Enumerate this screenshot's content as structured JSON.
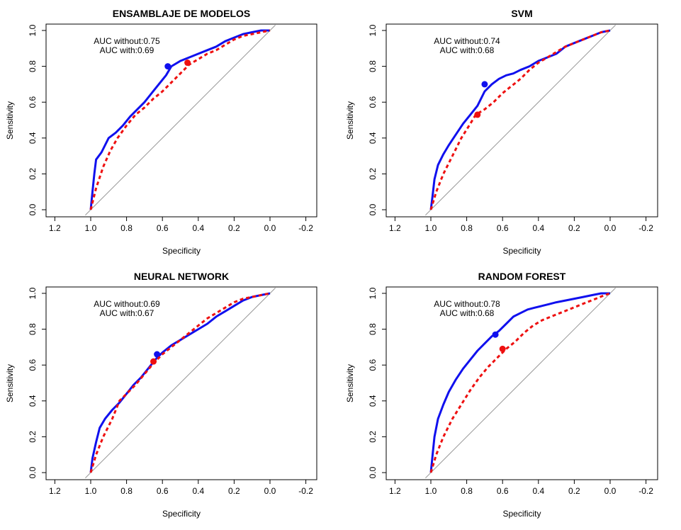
{
  "colors": {
    "without": "#1010ee",
    "with": "#ee1010",
    "diagonal": "#999999",
    "axis": "#000000"
  },
  "chart_data": [
    {
      "type": "line",
      "title": "ENSAMBLAJE DE MODELOS",
      "xlabel": "Specificity",
      "ylabel": "Sensitivity",
      "xlim": [
        1.25,
        -0.25
      ],
      "ylim": [
        0,
        1
      ],
      "xticks": [
        "1.2",
        "1.0",
        "0.8",
        "0.6",
        "0.4",
        "0.2",
        "0.0",
        "-0.2"
      ],
      "yticks": [
        "0.0",
        "0.2",
        "0.4",
        "0.6",
        "0.8",
        "1.0"
      ],
      "auc_without": "AUC without:0.75",
      "auc_with": "AUC with:0.69",
      "series": [
        {
          "id": "without",
          "style": "solid",
          "x": [
            1.0,
            0.99,
            0.98,
            0.97,
            0.94,
            0.9,
            0.86,
            0.82,
            0.78,
            0.74,
            0.7,
            0.66,
            0.62,
            0.58,
            0.55,
            0.5,
            0.45,
            0.4,
            0.35,
            0.3,
            0.25,
            0.2,
            0.15,
            0.1,
            0.05,
            0.0
          ],
          "y": [
            0.0,
            0.1,
            0.2,
            0.28,
            0.32,
            0.4,
            0.43,
            0.47,
            0.52,
            0.56,
            0.6,
            0.65,
            0.7,
            0.75,
            0.8,
            0.83,
            0.85,
            0.87,
            0.89,
            0.91,
            0.94,
            0.96,
            0.98,
            0.99,
            1.0,
            1.0
          ],
          "marker": [
            0.57,
            0.8
          ]
        },
        {
          "id": "with",
          "style": "dashed",
          "x": [
            1.0,
            0.97,
            0.93,
            0.89,
            0.85,
            0.8,
            0.75,
            0.7,
            0.65,
            0.6,
            0.55,
            0.5,
            0.45,
            0.4,
            0.35,
            0.3,
            0.25,
            0.2,
            0.15,
            0.1,
            0.05,
            0.0
          ],
          "y": [
            0.0,
            0.12,
            0.24,
            0.33,
            0.4,
            0.47,
            0.53,
            0.57,
            0.62,
            0.66,
            0.71,
            0.76,
            0.81,
            0.84,
            0.87,
            0.89,
            0.92,
            0.95,
            0.97,
            0.98,
            0.99,
            1.0
          ],
          "marker": [
            0.46,
            0.82
          ]
        }
      ]
    },
    {
      "type": "line",
      "title": "SVM",
      "xlabel": "Specificity",
      "ylabel": "Sensitivity",
      "xlim": [
        1.25,
        -0.25
      ],
      "ylim": [
        0,
        1
      ],
      "xticks": [
        "1.2",
        "1.0",
        "0.8",
        "0.6",
        "0.4",
        "0.2",
        "0.0",
        "-0.2"
      ],
      "yticks": [
        "0.0",
        "0.2",
        "0.4",
        "0.6",
        "0.8",
        "1.0"
      ],
      "auc_without": "AUC without:0.74",
      "auc_with": "AUC with:0.68",
      "series": [
        {
          "id": "without",
          "style": "solid",
          "x": [
            1.0,
            0.99,
            0.98,
            0.96,
            0.93,
            0.9,
            0.86,
            0.82,
            0.78,
            0.74,
            0.7,
            0.66,
            0.62,
            0.58,
            0.54,
            0.5,
            0.45,
            0.4,
            0.35,
            0.3,
            0.25,
            0.2,
            0.15,
            0.1,
            0.05,
            0.0
          ],
          "y": [
            0.0,
            0.08,
            0.17,
            0.25,
            0.31,
            0.36,
            0.42,
            0.48,
            0.53,
            0.58,
            0.66,
            0.7,
            0.73,
            0.75,
            0.76,
            0.78,
            0.8,
            0.83,
            0.85,
            0.87,
            0.91,
            0.93,
            0.95,
            0.97,
            0.99,
            1.0
          ],
          "marker": [
            0.7,
            0.7
          ]
        },
        {
          "id": "with",
          "style": "dashed",
          "x": [
            1.0,
            0.97,
            0.93,
            0.88,
            0.83,
            0.78,
            0.75,
            0.7,
            0.65,
            0.6,
            0.55,
            0.5,
            0.45,
            0.4,
            0.35,
            0.3,
            0.25,
            0.2,
            0.15,
            0.1,
            0.05,
            0.0
          ],
          "y": [
            0.0,
            0.1,
            0.2,
            0.3,
            0.4,
            0.48,
            0.53,
            0.56,
            0.6,
            0.65,
            0.69,
            0.73,
            0.78,
            0.82,
            0.85,
            0.88,
            0.91,
            0.93,
            0.95,
            0.97,
            0.99,
            1.0
          ],
          "marker": [
            0.74,
            0.53
          ]
        }
      ]
    },
    {
      "type": "line",
      "title": "NEURAL NETWORK",
      "xlabel": "Specificity",
      "ylabel": "Sensitivity",
      "xlim": [
        1.25,
        -0.25
      ],
      "ylim": [
        0,
        1
      ],
      "xticks": [
        "1.2",
        "1.0",
        "0.8",
        "0.6",
        "0.4",
        "0.2",
        "0.0",
        "-0.2"
      ],
      "yticks": [
        "0.0",
        "0.2",
        "0.4",
        "0.6",
        "0.8",
        "1.0"
      ],
      "auc_without": "AUC without:0.69",
      "auc_with": "AUC with:0.67",
      "series": [
        {
          "id": "without",
          "style": "solid",
          "x": [
            1.0,
            0.99,
            0.97,
            0.95,
            0.92,
            0.88,
            0.84,
            0.8,
            0.76,
            0.72,
            0.68,
            0.64,
            0.6,
            0.55,
            0.5,
            0.45,
            0.4,
            0.35,
            0.3,
            0.25,
            0.2,
            0.15,
            0.1,
            0.05,
            0.0
          ],
          "y": [
            0.0,
            0.08,
            0.17,
            0.25,
            0.3,
            0.35,
            0.39,
            0.44,
            0.49,
            0.53,
            0.58,
            0.63,
            0.67,
            0.71,
            0.74,
            0.77,
            0.8,
            0.83,
            0.87,
            0.9,
            0.93,
            0.96,
            0.98,
            0.99,
            1.0
          ],
          "marker": [
            0.63,
            0.66
          ]
        },
        {
          "id": "with",
          "style": "dashed",
          "x": [
            1.0,
            0.97,
            0.93,
            0.88,
            0.84,
            0.8,
            0.75,
            0.7,
            0.65,
            0.6,
            0.55,
            0.5,
            0.45,
            0.4,
            0.35,
            0.3,
            0.25,
            0.2,
            0.15,
            0.1,
            0.05,
            0.0
          ],
          "y": [
            0.0,
            0.1,
            0.2,
            0.3,
            0.4,
            0.44,
            0.49,
            0.55,
            0.61,
            0.66,
            0.7,
            0.74,
            0.78,
            0.82,
            0.86,
            0.89,
            0.92,
            0.95,
            0.97,
            0.98,
            0.99,
            1.0
          ],
          "marker": [
            0.65,
            0.62
          ]
        }
      ]
    },
    {
      "type": "line",
      "title": "RANDOM FOREST",
      "xlabel": "Specificity",
      "ylabel": "Sensitivity",
      "xlim": [
        1.25,
        -0.25
      ],
      "ylim": [
        0,
        1
      ],
      "xticks": [
        "1.2",
        "1.0",
        "0.8",
        "0.6",
        "0.4",
        "0.2",
        "0.0",
        "-0.2"
      ],
      "yticks": [
        "0.0",
        "0.2",
        "0.4",
        "0.6",
        "0.8",
        "1.0"
      ],
      "auc_without": "AUC without:0.78",
      "auc_with": "AUC with:0.68",
      "series": [
        {
          "id": "without",
          "style": "solid",
          "x": [
            1.0,
            0.99,
            0.98,
            0.96,
            0.93,
            0.9,
            0.86,
            0.82,
            0.78,
            0.74,
            0.7,
            0.66,
            0.62,
            0.58,
            0.54,
            0.5,
            0.46,
            0.42,
            0.38,
            0.34,
            0.3,
            0.25,
            0.2,
            0.15,
            0.1,
            0.05,
            0.0
          ],
          "y": [
            0.0,
            0.1,
            0.2,
            0.3,
            0.38,
            0.45,
            0.52,
            0.58,
            0.63,
            0.68,
            0.72,
            0.76,
            0.79,
            0.83,
            0.87,
            0.89,
            0.91,
            0.92,
            0.93,
            0.94,
            0.95,
            0.96,
            0.97,
            0.98,
            0.99,
            1.0,
            1.0
          ],
          "marker": [
            0.64,
            0.77
          ]
        },
        {
          "id": "with",
          "style": "dashed",
          "x": [
            1.0,
            0.97,
            0.93,
            0.88,
            0.83,
            0.78,
            0.73,
            0.68,
            0.63,
            0.58,
            0.53,
            0.48,
            0.43,
            0.38,
            0.33,
            0.28,
            0.23,
            0.18,
            0.13,
            0.08,
            0.03,
            0.0
          ],
          "y": [
            0.0,
            0.1,
            0.2,
            0.3,
            0.38,
            0.46,
            0.53,
            0.59,
            0.64,
            0.69,
            0.73,
            0.78,
            0.82,
            0.85,
            0.87,
            0.89,
            0.91,
            0.93,
            0.95,
            0.97,
            0.99,
            1.0
          ],
          "marker": [
            0.6,
            0.69
          ]
        }
      ]
    }
  ]
}
